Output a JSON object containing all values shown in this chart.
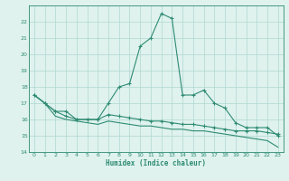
{
  "xlabel": "Humidex (Indice chaleur)",
  "line1": {
    "x": [
      0,
      1,
      2,
      3,
      4,
      5,
      6,
      7,
      8,
      9,
      10,
      11,
      12,
      13,
      14,
      15,
      16,
      17,
      18,
      19,
      20,
      21,
      22,
      23
    ],
    "y": [
      17.5,
      17.0,
      16.5,
      16.5,
      16.0,
      16.0,
      16.0,
      17.0,
      18.0,
      18.2,
      20.5,
      21.0,
      22.5,
      22.2,
      17.5,
      17.5,
      17.8,
      17.0,
      16.7,
      15.8,
      15.5,
      15.5,
      15.5,
      15.0
    ]
  },
  "line2": {
    "x": [
      0,
      1,
      2,
      3,
      4,
      5,
      6,
      7,
      8,
      9,
      10,
      11,
      12,
      13,
      14,
      15,
      16,
      17,
      18,
      19,
      20,
      21,
      22,
      23
    ],
    "y": [
      17.5,
      17.0,
      16.5,
      16.2,
      16.0,
      16.0,
      16.0,
      16.3,
      16.2,
      16.1,
      16.0,
      15.9,
      15.9,
      15.8,
      15.7,
      15.7,
      15.6,
      15.5,
      15.4,
      15.3,
      15.3,
      15.3,
      15.2,
      15.1
    ]
  },
  "line3": {
    "x": [
      0,
      1,
      2,
      3,
      4,
      5,
      6,
      7,
      8,
      9,
      10,
      11,
      12,
      13,
      14,
      15,
      16,
      17,
      18,
      19,
      20,
      21,
      22,
      23
    ],
    "y": [
      17.5,
      17.0,
      16.2,
      16.0,
      15.9,
      15.8,
      15.7,
      15.9,
      15.8,
      15.7,
      15.6,
      15.6,
      15.5,
      15.4,
      15.4,
      15.3,
      15.3,
      15.2,
      15.1,
      15.0,
      14.9,
      14.8,
      14.7,
      14.3
    ]
  },
  "color": "#2e8b72",
  "bg_color": "#dff2ee",
  "grid_color": "#afd8d0",
  "ylim": [
    14,
    23
  ],
  "xlim": [
    -0.5,
    23.5
  ],
  "yticks": [
    14,
    15,
    16,
    17,
    18,
    19,
    20,
    21,
    22
  ],
  "xticks": [
    0,
    1,
    2,
    3,
    4,
    5,
    6,
    7,
    8,
    9,
    10,
    11,
    12,
    13,
    14,
    15,
    16,
    17,
    18,
    19,
    20,
    21,
    22,
    23
  ]
}
